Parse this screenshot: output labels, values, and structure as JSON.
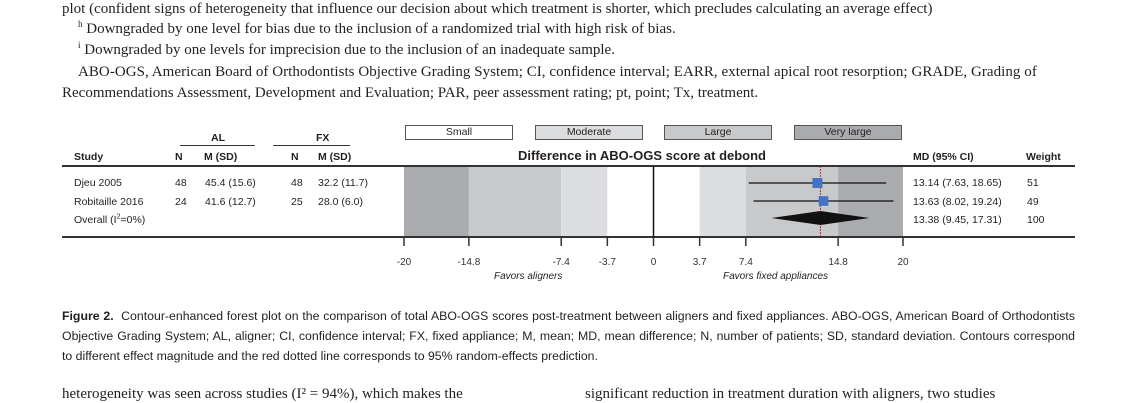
{
  "text_above": {
    "line1": "plot (confident signs of heterogeneity that influence our decision about which treatment is shorter, which precludes calculating an average effect)",
    "footnote_h_mark": "h",
    "footnote_h": "Downgraded by one level for bias due to the inclusion of a randomized trial with high risk of bias.",
    "footnote_i_mark": "i",
    "footnote_i": "Downgraded by one levels for imprecision due to the inclusion of an inadequate sample.",
    "abbrev_line1": "ABO-OGS, American Board of Orthodontists Objective Grading System; CI, confidence interval; EARR, external apical root resorption; GRADE, Grading of",
    "abbrev_line2": "Recommendations Assessment, Development and Evaluation; PAR, peer assessment rating; pt, point; Tx, treatment."
  },
  "chart_data": {
    "type": "forest",
    "title": "Difference in ABO-OGS score at debond",
    "legend": [
      {
        "label": "Small",
        "color": "#ffffff"
      },
      {
        "label": "Moderate",
        "color": "#dcdddf"
      },
      {
        "label": "Large",
        "color": "#c8c9cb"
      },
      {
        "label": "Very large",
        "color": "#a9abae"
      }
    ],
    "group_headers": {
      "al": "AL",
      "fx": "FX"
    },
    "columns": {
      "study": "Study",
      "n_al": "N",
      "msd_al": "M (SD)",
      "n_fx": "N",
      "msd_fx": "M (SD)",
      "md": "MD (95% CI)",
      "weight": "Weight"
    },
    "studies": [
      {
        "study": "Djeu 2005",
        "n_al": "48",
        "msd_al": "45.4 (15.6)",
        "n_fx": "48",
        "msd_fx": "32.2 (11.7)",
        "md": 13.14,
        "lo": 7.63,
        "hi": 18.65,
        "md_text": "13.14 (7.63, 18.65)",
        "weight": "51"
      },
      {
        "study": "Robitaille 2016",
        "n_al": "24",
        "msd_al": "41.6 (12.7)",
        "n_fx": "25",
        "msd_fx": "28.0 (6.0)",
        "md": 13.63,
        "lo": 8.02,
        "hi": 19.24,
        "md_text": "13.63 (8.02, 19.24)",
        "weight": "49"
      }
    ],
    "overall": {
      "label_pre": "Overall (I",
      "label_sup": "2",
      "label_post": "=0%)",
      "md": 13.38,
      "lo": 9.45,
      "hi": 17.31,
      "md_text": "13.38 (9.45, 17.31)",
      "weight": "100"
    },
    "prediction_line": 13.38,
    "xlim": [
      -20,
      20
    ],
    "xticks": [
      "-20",
      "-14.8",
      "-7.4",
      "-3.7",
      "0",
      "3.7",
      "7.4",
      "14.8",
      "20"
    ],
    "contours": [
      {
        "from": -20,
        "to": -14.8,
        "level": "Very large"
      },
      {
        "from": -14.8,
        "to": -7.4,
        "level": "Large"
      },
      {
        "from": -7.4,
        "to": -3.7,
        "level": "Moderate"
      },
      {
        "from": -3.7,
        "to": 3.7,
        "level": "Small"
      },
      {
        "from": 3.7,
        "to": 7.4,
        "level": "Moderate"
      },
      {
        "from": 7.4,
        "to": 14.8,
        "level": "Large"
      },
      {
        "from": 14.8,
        "to": 20,
        "level": "Very large"
      }
    ],
    "square_color": "#4472c4",
    "prediction_color": "#c0282d",
    "favors_left": "Favors aligners",
    "favors_right": "Favors fixed appliances"
  },
  "caption": {
    "label": "Figure 2.",
    "text": "Contour-enhanced forest plot on the comparison of total ABO-OGS scores post-treatment between aligners and fixed appliances. ABO-OGS, American Board of Orthodontists Objective Grading System; AL, aligner; CI, confidence interval; FX, fixed appliance; M, mean; MD, mean difference; N, number of patients; SD, standard deviation. Contours correspond to different effect magnitude and the red dotted line corresponds to 95% random-effects prediction."
  },
  "body_text": {
    "left": "heterogeneity was seen across studies (I² = 94%), which makes the",
    "right": "significant reduction in treatment duration with aligners, two studies"
  }
}
